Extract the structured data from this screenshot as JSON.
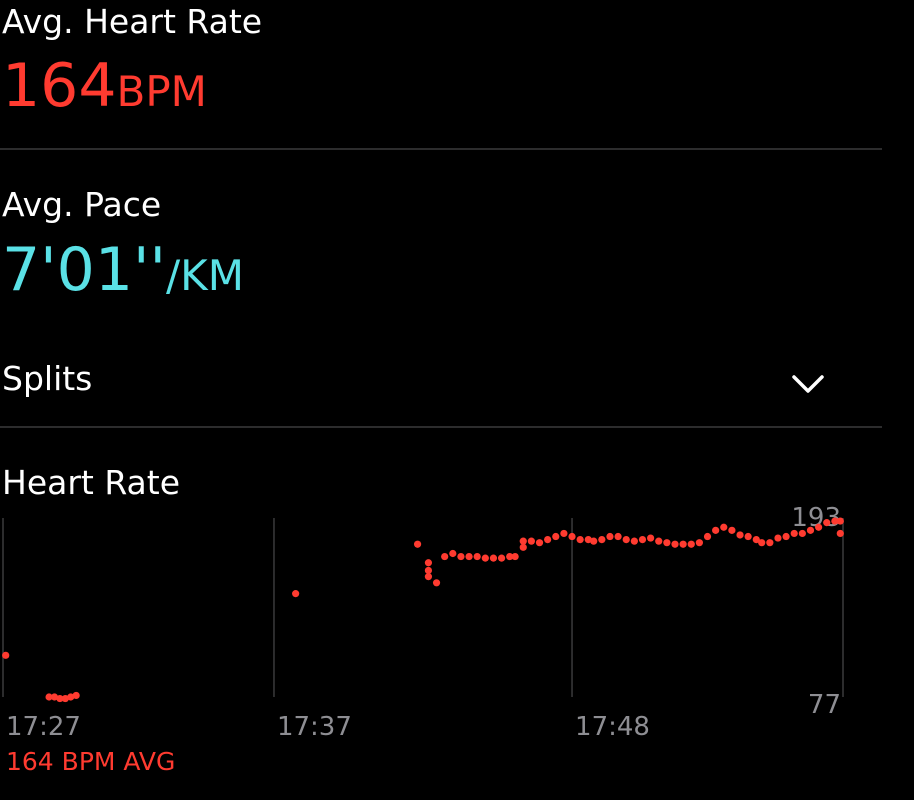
{
  "metrics": [
    {
      "label": "Avg. Heart Rate",
      "value": "164",
      "unit": "BPM"
    },
    {
      "label": "Avg. Pace",
      "value": "7'01''",
      "unit": "/KM"
    }
  ],
  "splits": {
    "label": "Splits"
  },
  "chart_data": {
    "type": "scatter",
    "title": "Heart Rate",
    "color": "#ff3b30",
    "x": [
      1047.1,
      1048.7,
      1048.9,
      1049.1,
      1049.3,
      1049.5,
      1049.7,
      1057.8,
      1062.3,
      1062.7,
      1062.7,
      1062.7,
      1063.0,
      1063.3,
      1063.6,
      1063.9,
      1064.2,
      1064.5,
      1064.8,
      1065.1,
      1065.4,
      1065.7,
      1065.9,
      1066.2,
      1066.2,
      1066.5,
      1066.8,
      1067.1,
      1067.4,
      1067.7,
      1068.0,
      1068.3,
      1068.6,
      1068.8,
      1069.1,
      1069.4,
      1069.7,
      1070.0,
      1070.3,
      1070.6,
      1070.9,
      1071.2,
      1071.5,
      1071.8,
      1072.1,
      1072.4,
      1072.7,
      1073.0,
      1073.3,
      1073.6,
      1073.9,
      1074.2,
      1074.5,
      1074.8,
      1075.0,
      1075.3,
      1075.6,
      1075.9,
      1076.2,
      1076.5,
      1076.8,
      1077.1,
      1077.4,
      1077.7,
      1077.9,
      1077.9
    ],
    "values": [
      104,
      77,
      77,
      76,
      76,
      77,
      78,
      144,
      176,
      164,
      159,
      155,
      151,
      168,
      170,
      168,
      168,
      168,
      167,
      167,
      167,
      168,
      168,
      174,
      178,
      178,
      177,
      179,
      181,
      183,
      181,
      179,
      179,
      178,
      179,
      181,
      181,
      179,
      178,
      179,
      180,
      178,
      177,
      176,
      176,
      176,
      177,
      181,
      185,
      187,
      185,
      182,
      181,
      179,
      177,
      177,
      180,
      181,
      183,
      183,
      185,
      187,
      190,
      191,
      191,
      183
    ],
    "xlim": [
      1047,
      1078
    ],
    "xticks": [
      {
        "value": 1047,
        "label": "17:27"
      },
      {
        "value": 1057,
        "label": "17:37"
      },
      {
        "value": 1068,
        "label": "17:48"
      }
    ],
    "ylim": [
      77,
      193
    ],
    "yticks": [
      77,
      193
    ],
    "footer": "164 BPM AVG"
  }
}
